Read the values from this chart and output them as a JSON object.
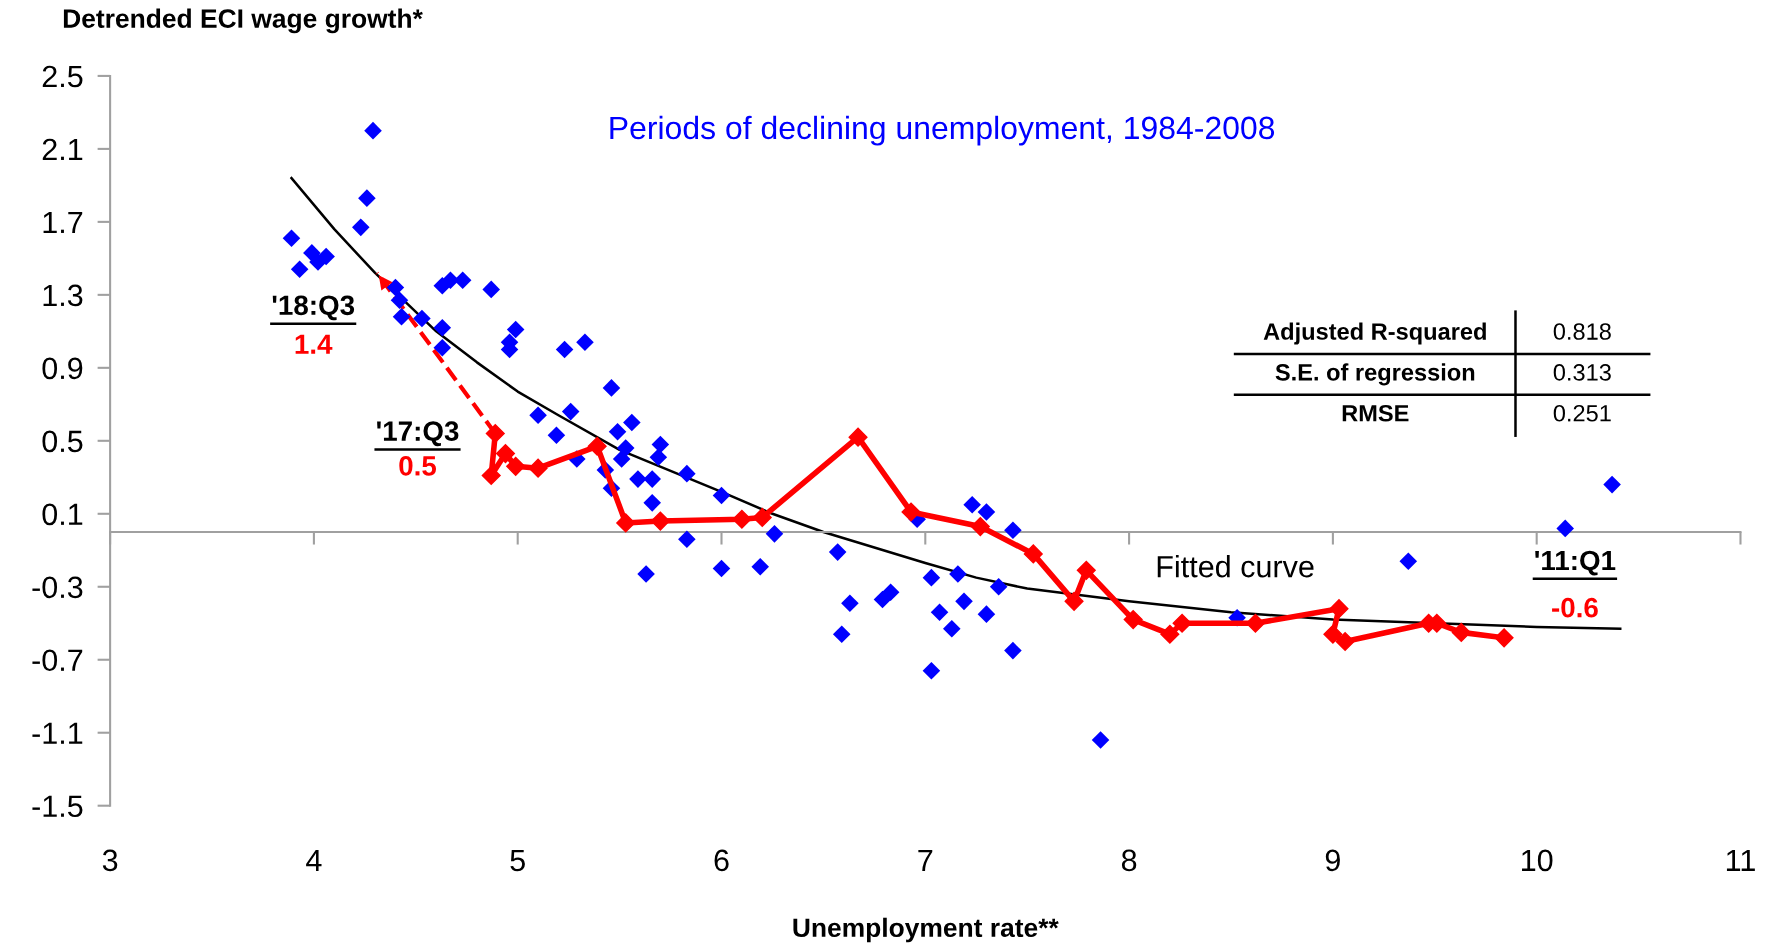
{
  "chart_data": {
    "type": "scatter",
    "title": "Periods of declining unemployment, 1984-2008",
    "xlabel": "Unemployment rate**",
    "ylabel": "Detrended ECI wage growth*",
    "xlim": [
      3,
      11
    ],
    "xticks": [
      3,
      4,
      5,
      6,
      7,
      8,
      9,
      10,
      11
    ],
    "ylim": [
      -1.5,
      2.5
    ],
    "yticks": [
      -1.5,
      -1.1,
      -0.7,
      -0.3,
      0.1,
      0.5,
      0.9,
      1.3,
      1.7,
      2.1,
      2.5
    ],
    "marker": "diamond",
    "legend": false,
    "grid": false,
    "series": [
      {
        "color": "#0000ff",
        "x": [
          4.29,
          3.89,
          3.93,
          3.99,
          4.02,
          4.06,
          4.23,
          4.26,
          4.4,
          4.42,
          4.43,
          4.53,
          4.63,
          4.67,
          4.73,
          4.63,
          4.63,
          4.87,
          4.96,
          4.96,
          4.99,
          5.1,
          5.19,
          5.23,
          5.26,
          5.33,
          5.29,
          5.46,
          5.49,
          5.56,
          5.53,
          5.43,
          5.46,
          5.51,
          5.59,
          5.66,
          5.7,
          5.69,
          5.66,
          5.63,
          5.83,
          5.83,
          6.0,
          6.0,
          6.19,
          6.26,
          6.57,
          6.59,
          6.63,
          6.79,
          6.83,
          6.96,
          7.03,
          7.07,
          7.03,
          7.13,
          7.16,
          7.19,
          7.23,
          7.3,
          7.3,
          7.36,
          7.43,
          7.43,
          7.86,
          8.53,
          9.37,
          10.14,
          10.37
        ],
        "values": [
          2.2,
          1.61,
          1.44,
          1.53,
          1.48,
          1.51,
          1.67,
          1.83,
          1.34,
          1.27,
          1.18,
          1.17,
          1.35,
          1.38,
          1.38,
          1.12,
          1.01,
          1.33,
          1.04,
          1.0,
          1.11,
          0.64,
          0.53,
          1.0,
          0.66,
          1.04,
          0.4,
          0.79,
          0.55,
          0.6,
          0.46,
          0.34,
          0.24,
          0.4,
          0.29,
          0.29,
          0.48,
          0.41,
          0.16,
          -0.23,
          0.32,
          -0.04,
          0.2,
          -0.2,
          -0.19,
          -0.01,
          -0.11,
          -0.56,
          -0.39,
          -0.37,
          -0.33,
          0.07,
          -0.25,
          -0.44,
          -0.76,
          -0.53,
          -0.23,
          -0.38,
          0.15,
          0.11,
          -0.45,
          -0.3,
          0.01,
          -0.65,
          -1.14,
          -0.47,
          -0.16,
          0.02,
          0.26
        ]
      },
      {
        "type": "line",
        "name": "Fitted curve",
        "color": "#000000",
        "marker": "none",
        "x": [
          3.89,
          4.1,
          4.3,
          4.6,
          4.8,
          5.0,
          5.2,
          5.5,
          6.0,
          6.25,
          6.5,
          7.0,
          7.25,
          7.5,
          8.0,
          8.5,
          9.0,
          10.0,
          10.41
        ],
        "values": [
          1.94,
          1.66,
          1.42,
          1.1,
          0.93,
          0.77,
          0.64,
          0.45,
          0.22,
          0.1,
          0.0,
          -0.17,
          -0.25,
          -0.31,
          -0.38,
          -0.44,
          -0.48,
          -0.52,
          -0.53
        ]
      },
      {
        "type": "line",
        "color": "#ff0000",
        "x": [
          9.84,
          9.63,
          9.51,
          9.47,
          9.06,
          9.0,
          9.03,
          8.62,
          8.26,
          8.2,
          8.02,
          7.79,
          7.73,
          7.53,
          7.27,
          6.93,
          6.67,
          6.2,
          6.1,
          5.7,
          5.53,
          5.39,
          5.1,
          4.99,
          4.94,
          4.87,
          4.89
        ],
        "values": [
          -0.58,
          -0.55,
          -0.5,
          -0.5,
          -0.6,
          -0.56,
          -0.42,
          -0.5,
          -0.5,
          -0.56,
          -0.48,
          -0.21,
          -0.38,
          -0.12,
          0.03,
          0.11,
          0.52,
          0.08,
          0.07,
          0.06,
          0.05,
          0.47,
          0.35,
          0.36,
          0.43,
          0.31,
          0.54
        ]
      },
      {
        "type": "line",
        "color": "#ff0000",
        "marker": "none",
        "line_style": "dashed",
        "x": [
          4.89,
          4.31
        ],
        "values": [
          0.54,
          1.42
        ]
      }
    ],
    "annotations": [
      {
        "text": "'18:Q3",
        "x": 4.31,
        "y": 1.42
      },
      {
        "text": "1.4",
        "x": 4.31,
        "y": 1.42
      },
      {
        "text": "'17:Q3",
        "x": 4.89,
        "y": 0.54
      },
      {
        "text": "0.5",
        "x": 4.89,
        "y": 0.54
      },
      {
        "text": "'11:Q1",
        "x": 9.84,
        "y": -0.58
      },
      {
        "text": "-0.6",
        "x": 9.84,
        "y": -0.58
      },
      "Adjusted R-squared",
      "0.818",
      "S.E. of regression",
      "0.313",
      "RMSE",
      "0.251"
    ]
  }
}
